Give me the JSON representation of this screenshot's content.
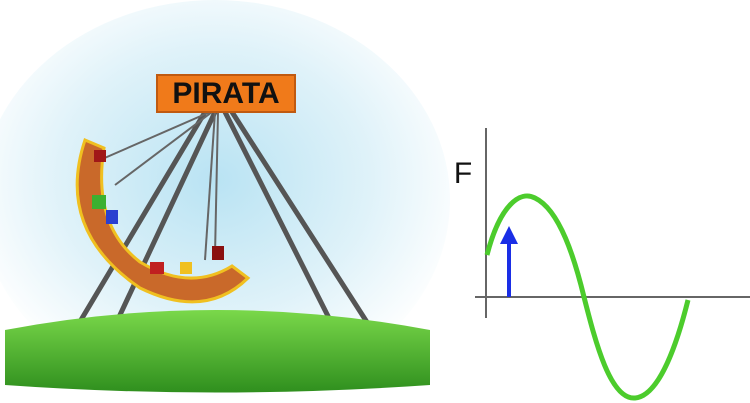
{
  "sign": {
    "label": "PIRATA"
  },
  "graph": {
    "axis_label": "F"
  }
}
